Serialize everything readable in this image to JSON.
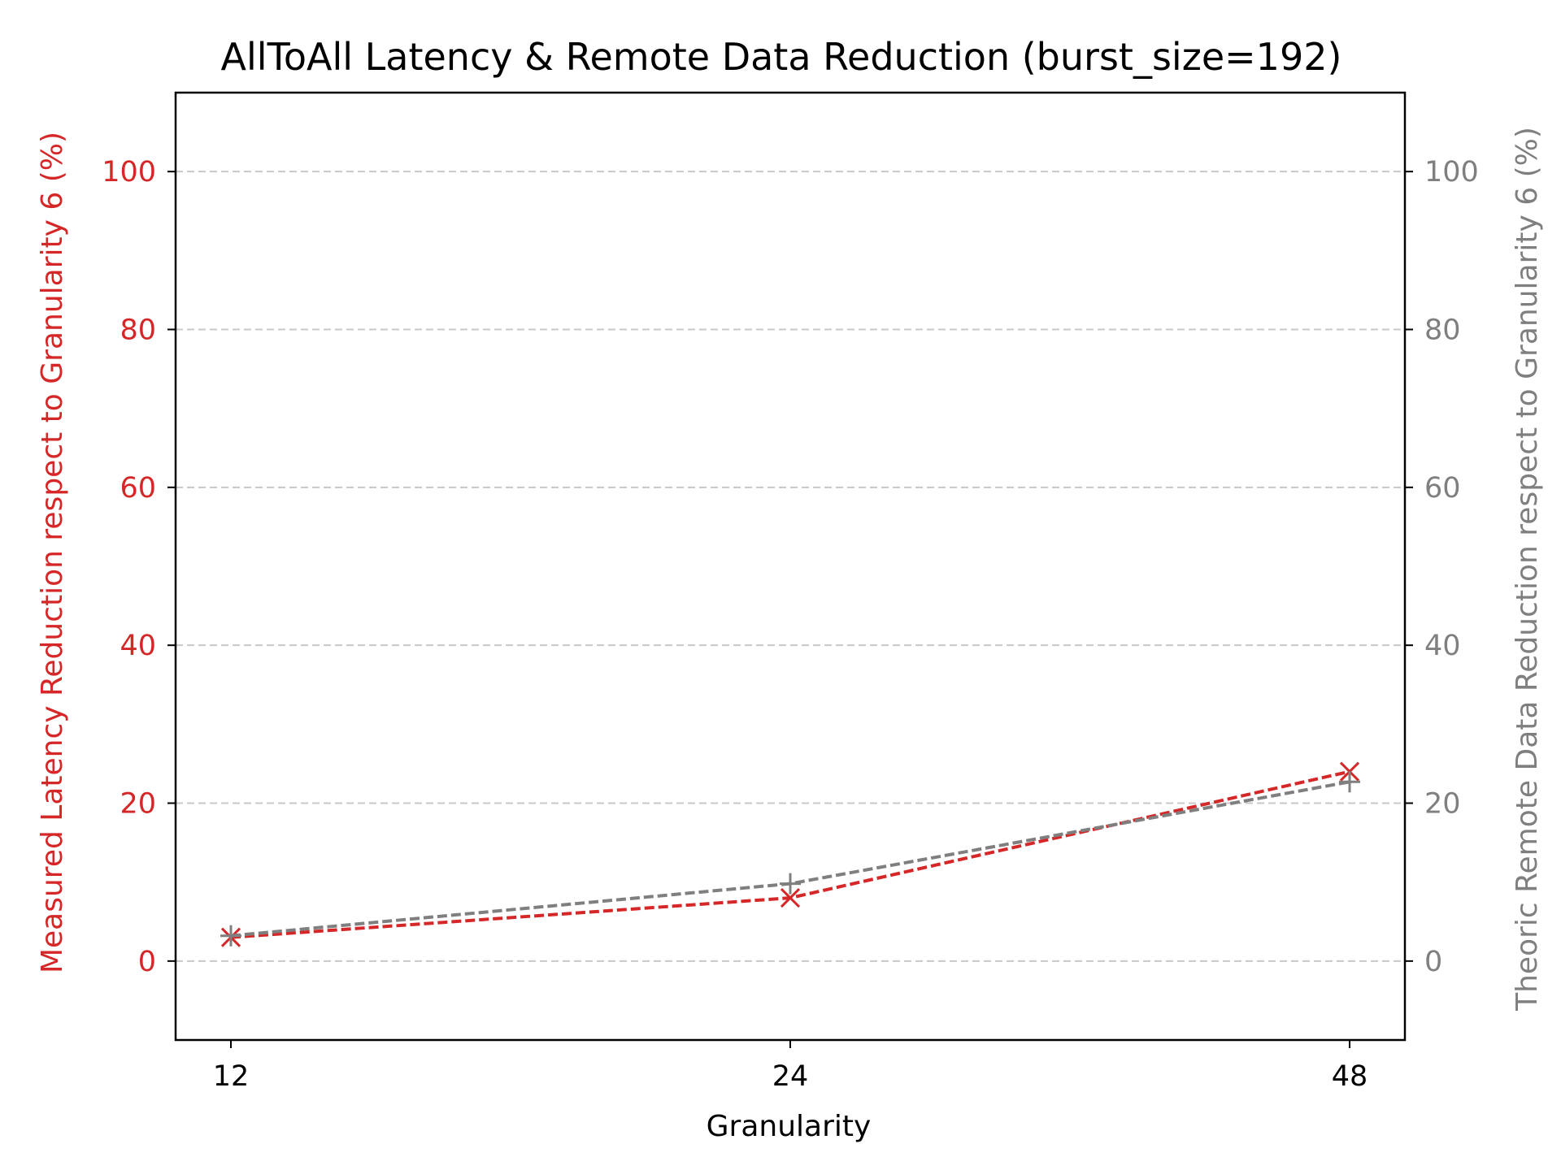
{
  "chart_data": {
    "type": "line",
    "title": "AllToAll Latency & Remote Data Reduction (burst_size=192)",
    "xlabel": "Granularity",
    "ylabel_left": "Measured Latency Reduction respect to Granularity 6 (%)",
    "ylabel_right": "Theoric Remote Data Reduction respect to Granularity 6 (%)",
    "categories": [
      "12",
      "24",
      "48"
    ],
    "xlim": [
      12,
      48
    ],
    "ylim": [
      -10,
      110
    ],
    "yticks": [
      0,
      20,
      40,
      60,
      80,
      100
    ],
    "grid": "horizontal-dashed",
    "series": [
      {
        "axis": "left",
        "marker": "x",
        "line_style": "dashed",
        "color": "#d62728",
        "values": [
          3.0,
          8.0,
          24.0
        ]
      },
      {
        "axis": "right",
        "marker": "+",
        "line_style": "dashed",
        "color": "#7f7f7f",
        "values": [
          3.2,
          9.8,
          22.7
        ]
      }
    ],
    "colors": {
      "left_axis": "#d62728",
      "right_axis": "#7f7f7f",
      "grid": "#c8c8c8",
      "frame": "#000000"
    }
  }
}
